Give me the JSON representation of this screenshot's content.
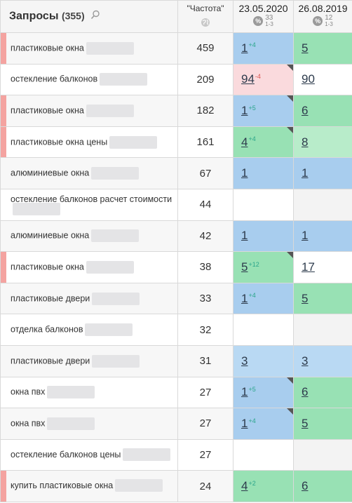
{
  "header": {
    "queries_label": "Запросы",
    "queries_count": "(355)",
    "freq_label": "\"Частота\"",
    "date1": "23.05.2020",
    "date1_pct_top": "33",
    "date1_pct_sub": "1-3",
    "date2": "26.08.2019",
    "date2_pct_top": "12",
    "date2_pct_sub": "1-3",
    "pct_symbol": "%"
  },
  "colors": {
    "marker": "#f4a3a0",
    "blue": "#a8cdee",
    "green": "#98e1b4",
    "light_green": "#b8ecca",
    "pink": "#fadadd",
    "delta_up": "#2aa58a",
    "delta_down": "#d9534f"
  },
  "rows": [
    {
      "query": "пластиковые окна",
      "freq": "459",
      "marked": true,
      "pos1": "1",
      "delta1": "+4",
      "dir1": "up",
      "bg1": "blue",
      "corner1": false,
      "pos2": "5",
      "bg2": "green"
    },
    {
      "query": "остекление балконов",
      "freq": "209",
      "marked": false,
      "pos1": "94",
      "delta1": "-4",
      "dir1": "down",
      "bg1": "pink",
      "corner1": true,
      "pos2": "90",
      "bg2": "white"
    },
    {
      "query": "пластиковые окна",
      "freq": "182",
      "marked": true,
      "pos1": "1",
      "delta1": "+5",
      "dir1": "up",
      "bg1": "blue",
      "corner1": true,
      "pos2": "6",
      "bg2": "green"
    },
    {
      "query": "пластиковые окна цены",
      "freq": "161",
      "marked": true,
      "pos1": "4",
      "delta1": "+4",
      "dir1": "up",
      "bg1": "green",
      "corner1": true,
      "pos2": "8",
      "bg2": "lgreen"
    },
    {
      "query": "алюминиевые окна",
      "freq": "67",
      "marked": false,
      "pos1": "1",
      "delta1": "",
      "dir1": "",
      "bg1": "blue",
      "corner1": false,
      "pos2": "1",
      "bg2": "blue"
    },
    {
      "query": "остекление балконов расчет стоимости",
      "freq": "44",
      "marked": false,
      "pos1": "",
      "delta1": "",
      "dir1": "",
      "bg1": "white",
      "corner1": false,
      "pos2": "",
      "bg2": "gray"
    },
    {
      "query": "алюминиевые окна",
      "freq": "42",
      "marked": false,
      "pos1": "1",
      "delta1": "",
      "dir1": "",
      "bg1": "blue",
      "corner1": false,
      "pos2": "1",
      "bg2": "blue"
    },
    {
      "query": "пластиковые окна",
      "freq": "38",
      "marked": true,
      "pos1": "5",
      "delta1": "+12",
      "dir1": "up",
      "bg1": "green",
      "corner1": true,
      "pos2": "17",
      "bg2": "white"
    },
    {
      "query": "пластиковые двери",
      "freq": "33",
      "marked": false,
      "pos1": "1",
      "delta1": "+4",
      "dir1": "up",
      "bg1": "blue",
      "corner1": false,
      "pos2": "5",
      "bg2": "green"
    },
    {
      "query": "отделка балконов",
      "freq": "32",
      "marked": false,
      "pos1": "",
      "delta1": "",
      "dir1": "",
      "bg1": "white",
      "corner1": false,
      "pos2": "",
      "bg2": "gray"
    },
    {
      "query": "пластиковые двери",
      "freq": "31",
      "marked": false,
      "pos1": "3",
      "delta1": "",
      "dir1": "",
      "bg1": "lblue",
      "corner1": false,
      "pos2": "3",
      "bg2": "lblue"
    },
    {
      "query": "окна пвх",
      "freq": "27",
      "marked": false,
      "pos1": "1",
      "delta1": "+5",
      "dir1": "up",
      "bg1": "blue",
      "corner1": true,
      "pos2": "6",
      "bg2": "green"
    },
    {
      "query": "окна пвх",
      "freq": "27",
      "marked": false,
      "pos1": "1",
      "delta1": "+4",
      "dir1": "up",
      "bg1": "blue",
      "corner1": true,
      "pos2": "5",
      "bg2": "green"
    },
    {
      "query": "остекление балконов цены",
      "freq": "27",
      "marked": false,
      "pos1": "",
      "delta1": "",
      "dir1": "",
      "bg1": "white",
      "corner1": false,
      "pos2": "",
      "bg2": "gray"
    },
    {
      "query": "купить пластиковые окна",
      "freq": "24",
      "marked": true,
      "pos1": "4",
      "delta1": "+2",
      "dir1": "up",
      "bg1": "green",
      "corner1": false,
      "pos2": "6",
      "bg2": "green"
    }
  ]
}
